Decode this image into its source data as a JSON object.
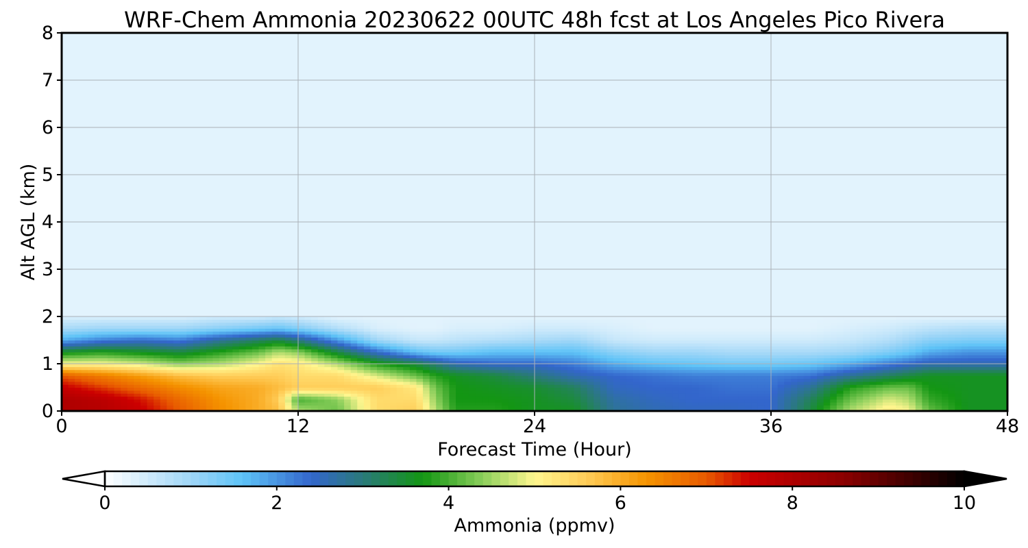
{
  "chart_data": {
    "type": "heatmap",
    "title": "WRF-Chem Ammonia  20230622 00UTC 48h fcst at Los Angeles Pico Rivera",
    "xlabel": "Forecast Time (Hour)",
    "ylabel": "Alt AGL (km)",
    "xlim": [
      0,
      48
    ],
    "ylim": [
      0,
      8
    ],
    "x_ticks": [
      "0",
      "12",
      "24",
      "36",
      "48"
    ],
    "y_ticks": [
      "0",
      "1",
      "2",
      "3",
      "4",
      "5",
      "6",
      "7",
      "8"
    ],
    "grid": true,
    "colorbar": {
      "label": "Ammonia  (ppmv)",
      "range": [
        0,
        10
      ],
      "ticks": [
        "0",
        "2",
        "4",
        "6",
        "8",
        "10"
      ],
      "extend": "both",
      "stops": [
        {
          "v": 0.0,
          "c": "#ffffff"
        },
        {
          "v": 1.0,
          "c": "#9fd6f7"
        },
        {
          "v": 1.6,
          "c": "#5ec3f7"
        },
        {
          "v": 2.4,
          "c": "#3366cc"
        },
        {
          "v": 3.0,
          "c": "#2a7a7a"
        },
        {
          "v": 3.7,
          "c": "#139613"
        },
        {
          "v": 4.4,
          "c": "#8ccf5c"
        },
        {
          "v": 5.0,
          "c": "#fff68f"
        },
        {
          "v": 5.6,
          "c": "#ffcd59"
        },
        {
          "v": 6.3,
          "c": "#f59400"
        },
        {
          "v": 7.0,
          "c": "#e85a00"
        },
        {
          "v": 7.5,
          "c": "#cc0000"
        },
        {
          "v": 8.6,
          "c": "#8b0000"
        },
        {
          "v": 10.0,
          "c": "#000000"
        }
      ],
      "under_color": "#ffffff",
      "over_color": "#000000"
    },
    "background_value": 0.3,
    "x_hours": [
      0,
      2,
      4,
      6,
      8,
      10,
      11,
      12,
      14,
      16,
      18,
      19,
      20,
      22,
      24,
      26,
      28,
      30,
      32,
      34,
      36,
      38,
      40,
      42,
      43,
      44,
      46,
      48
    ],
    "altitudes_km": [
      0,
      0.25,
      0.5,
      0.75,
      1.0,
      1.25,
      1.5,
      1.75,
      2.0
    ],
    "values_ppmv": [
      [
        8.0,
        7.9,
        7.6,
        7.0,
        6.4,
        6.0,
        5.8,
        4.6,
        4.2,
        5.4,
        5.6,
        4.6,
        3.8,
        3.8,
        3.6,
        3.6,
        2.8,
        2.6,
        2.5,
        2.5,
        2.4,
        3.4,
        4.6,
        5.2,
        5.0,
        4.2,
        3.6,
        3.6
      ],
      [
        8.0,
        7.8,
        7.4,
        6.8,
        6.3,
        6.0,
        5.6,
        4.0,
        4.4,
        5.4,
        5.4,
        4.4,
        3.7,
        3.7,
        3.6,
        3.4,
        2.7,
        2.5,
        2.4,
        2.4,
        2.4,
        3.2,
        4.2,
        4.8,
        4.6,
        3.9,
        3.6,
        3.6
      ],
      [
        7.6,
        7.2,
        6.8,
        6.4,
        6.1,
        6.0,
        5.8,
        5.6,
        5.6,
        5.6,
        5.2,
        4.2,
        3.7,
        3.6,
        3.5,
        3.2,
        2.5,
        2.4,
        2.4,
        2.3,
        2.3,
        2.8,
        3.8,
        4.2,
        4.2,
        3.7,
        3.6,
        3.6
      ],
      [
        7.0,
        6.6,
        6.2,
        5.8,
        5.6,
        5.6,
        5.6,
        5.4,
        5.4,
        4.8,
        4.2,
        3.8,
        3.6,
        3.4,
        3.0,
        2.6,
        2.4,
        2.3,
        2.2,
        2.2,
        2.2,
        2.3,
        2.8,
        3.2,
        3.4,
        3.6,
        3.6,
        3.6
      ],
      [
        5.0,
        5.0,
        4.8,
        4.4,
        4.6,
        5.0,
        5.3,
        5.2,
        4.6,
        3.8,
        3.4,
        3.0,
        2.6,
        2.4,
        2.4,
        2.2,
        1.8,
        1.6,
        1.5,
        1.4,
        1.4,
        1.5,
        1.8,
        2.2,
        2.4,
        2.6,
        2.6,
        2.6
      ],
      [
        3.6,
        3.8,
        3.6,
        3.4,
        3.8,
        4.2,
        4.6,
        4.4,
        3.4,
        2.4,
        1.6,
        1.4,
        1.4,
        1.6,
        1.6,
        1.6,
        1.2,
        1.0,
        1.0,
        0.9,
        0.9,
        0.9,
        1.0,
        1.3,
        1.5,
        1.8,
        2.0,
        2.0
      ],
      [
        1.8,
        2.2,
        2.4,
        2.2,
        2.8,
        3.2,
        3.4,
        3.0,
        2.0,
        1.0,
        0.6,
        0.6,
        0.7,
        0.8,
        0.9,
        1.0,
        0.6,
        0.5,
        0.5,
        0.5,
        0.5,
        0.5,
        0.6,
        0.8,
        1.0,
        1.2,
        1.3,
        1.3
      ],
      [
        0.9,
        1.0,
        1.0,
        1.0,
        1.2,
        1.4,
        1.5,
        1.3,
        0.8,
        0.4,
        0.3,
        0.3,
        0.4,
        0.4,
        0.5,
        0.5,
        0.4,
        0.3,
        0.3,
        0.3,
        0.3,
        0.3,
        0.4,
        0.5,
        0.6,
        0.7,
        0.8,
        0.8
      ],
      [
        0.4,
        0.4,
        0.4,
        0.4,
        0.5,
        0.5,
        0.6,
        0.5,
        0.3,
        0.3,
        0.3,
        0.3,
        0.3,
        0.3,
        0.3,
        0.3,
        0.3,
        0.3,
        0.3,
        0.3,
        0.3,
        0.3,
        0.3,
        0.3,
        0.3,
        0.3,
        0.3,
        0.3
      ]
    ]
  }
}
